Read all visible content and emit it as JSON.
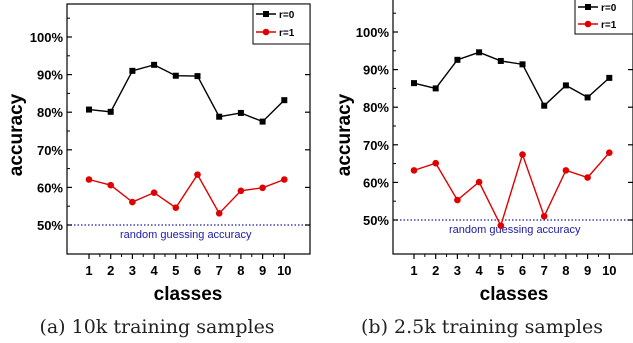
{
  "colors": {
    "series0": "#000000",
    "series1": "#e00000",
    "reference": "#1a1aa6"
  },
  "chart_data": [
    {
      "type": "line",
      "caption": "(a) 10k training samples",
      "xlabel": "classes",
      "ylabel": "accuracy",
      "x": [
        1,
        2,
        3,
        4,
        5,
        6,
        7,
        8,
        9,
        10
      ],
      "ylim": [
        40,
        108
      ],
      "yticks": [
        50,
        60,
        70,
        80,
        90,
        100
      ],
      "ytick_labels": [
        "50%",
        "60%",
        "70%",
        "80%",
        "90%",
        "100%"
      ],
      "xtick_labels": [
        "1",
        "2",
        "3",
        "4",
        "5",
        "6",
        "7",
        "8",
        "9",
        "10"
      ],
      "legend_position": "top-right",
      "series": [
        {
          "name": "r=0",
          "marker": "square",
          "color": "#000000",
          "values": [
            80.7,
            80.1,
            91.0,
            92.6,
            89.7,
            89.6,
            78.8,
            79.8,
            77.5,
            83.2
          ]
        },
        {
          "name": "r=1",
          "marker": "circle",
          "color": "#e00000",
          "values": [
            62.1,
            60.6,
            56.1,
            58.6,
            54.6,
            63.4,
            53.1,
            59.1,
            59.9,
            62.1
          ]
        }
      ],
      "reference_line": {
        "y": 49.8,
        "label": "random guessing accuracy",
        "style": "dotted"
      }
    },
    {
      "type": "line",
      "caption": "(b) 2.5k training samples",
      "xlabel": "classes",
      "ylabel": "accuracy",
      "x": [
        1,
        2,
        3,
        4,
        5,
        6,
        7,
        8,
        9,
        10
      ],
      "ylim": [
        40,
        108
      ],
      "yticks": [
        50,
        60,
        70,
        80,
        90,
        100
      ],
      "ytick_labels": [
        "50%",
        "60%",
        "70%",
        "80%",
        "90%",
        "100%"
      ],
      "xtick_labels": [
        "1",
        "2",
        "3",
        "4",
        "5",
        "6",
        "7",
        "8",
        "9",
        "10"
      ],
      "legend_position": "top-right",
      "series": [
        {
          "name": "r=0",
          "marker": "square",
          "color": "#000000",
          "values": [
            86.4,
            85.0,
            92.6,
            94.6,
            92.3,
            91.4,
            80.4,
            85.8,
            82.6,
            87.8
          ]
        },
        {
          "name": "r=1",
          "marker": "circle",
          "color": "#e00000",
          "values": [
            63.2,
            65.1,
            55.3,
            60.1,
            48.5,
            67.4,
            51.0,
            63.2,
            61.3,
            67.9
          ]
        }
      ],
      "reference_line": {
        "y": 49.8,
        "label": "random guessing accuracy",
        "style": "dotted"
      }
    }
  ]
}
